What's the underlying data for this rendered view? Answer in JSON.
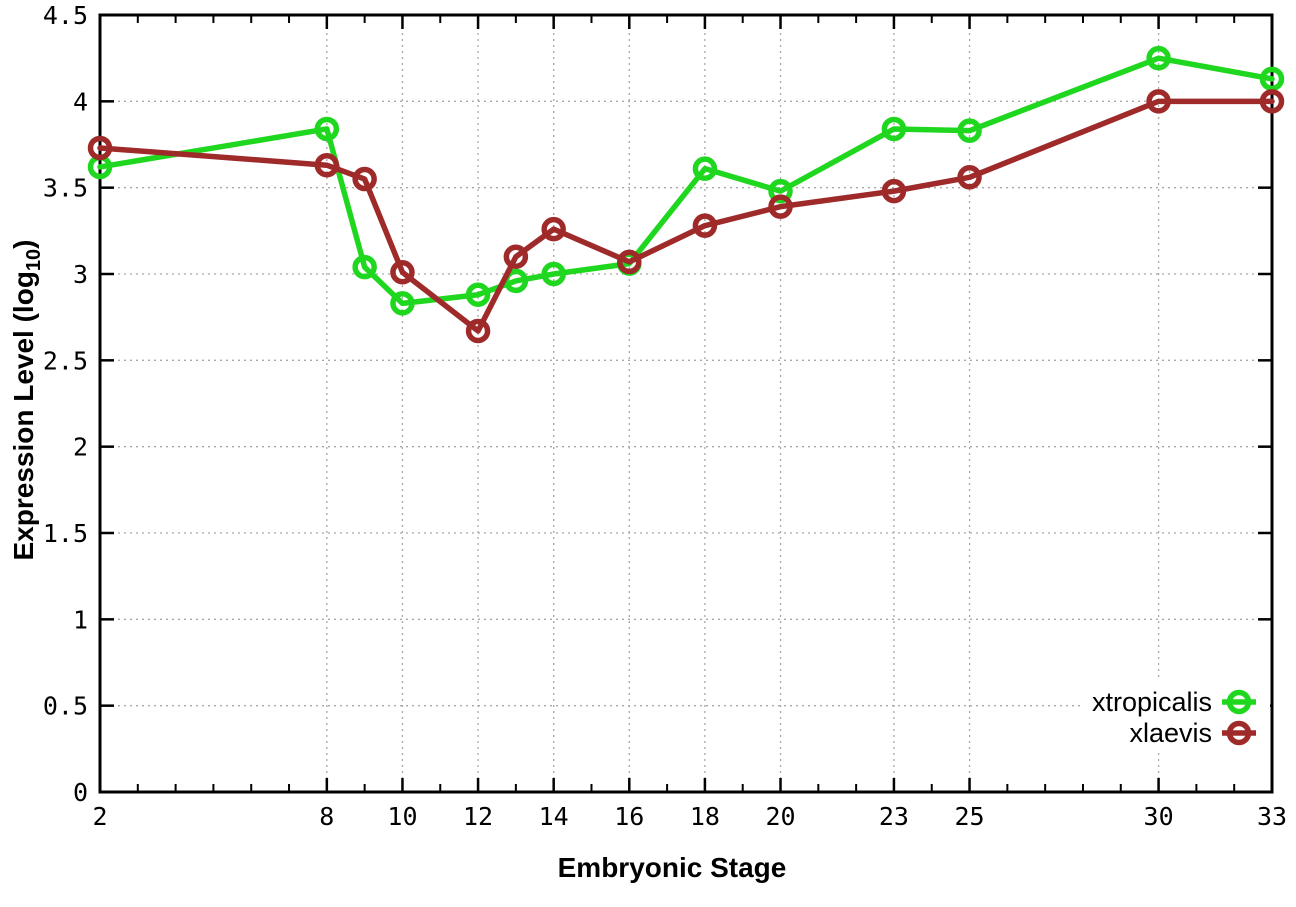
{
  "chart_data": {
    "type": "line",
    "title": "",
    "xlabel": "Embryonic Stage",
    "ylabel": "Expression Level (log10)",
    "ylabel_parts": {
      "prefix": "Expression Level (log",
      "sub": "10",
      "suffix": ")"
    },
    "x": [
      2,
      8,
      9,
      10,
      12,
      13,
      14,
      16,
      18,
      20,
      23,
      25,
      30,
      33
    ],
    "series": [
      {
        "name": "xtropicalis",
        "color": "#1fd71f",
        "marker": "open-circle",
        "values": [
          3.62,
          3.84,
          3.04,
          2.83,
          2.88,
          2.96,
          3.0,
          3.06,
          3.61,
          3.48,
          3.84,
          3.83,
          4.25,
          4.13
        ]
      },
      {
        "name": "xlaevis",
        "color": "#9f2a2a",
        "marker": "open-circle",
        "values": [
          3.73,
          3.63,
          3.55,
          3.01,
          2.67,
          3.1,
          3.26,
          3.07,
          3.28,
          3.39,
          3.48,
          3.56,
          4.0,
          4.0
        ]
      }
    ],
    "xlim": [
      2,
      33
    ],
    "ylim": [
      0,
      4.5
    ],
    "xticks": [
      2,
      8,
      10,
      12,
      14,
      16,
      18,
      20,
      23,
      25,
      30,
      33
    ],
    "xtick_labels": [
      "2",
      "8",
      "10",
      "12",
      "14",
      "16",
      "18",
      "20",
      "23",
      "25",
      "30",
      "33"
    ],
    "x_minor_step": 1,
    "yticks": [
      0,
      0.5,
      1,
      1.5,
      2,
      2.5,
      3,
      3.5,
      4,
      4.5
    ],
    "ytick_labels": [
      "0",
      "0.5",
      "1",
      "1.5",
      "2",
      "2.5",
      "3",
      "3.5",
      "4",
      "4.5"
    ],
    "grid": true,
    "grid_color": "#a8a8a8",
    "border_color": "#000000",
    "background_color": "#ffffff",
    "legend_position": "bottom-right",
    "legend_entries": [
      "xtropicalis",
      "xlaevis"
    ]
  }
}
